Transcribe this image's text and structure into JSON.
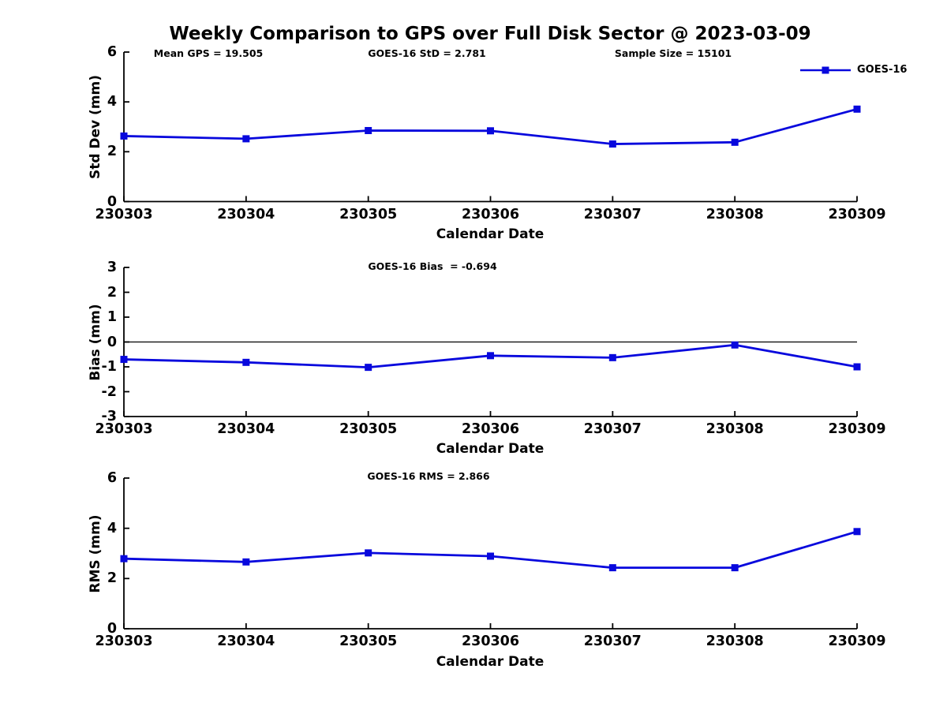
{
  "figure": {
    "title": "Weekly Comparison to GPS over Full Disk Sector @ 2023-03-09"
  },
  "legend": {
    "label": "GOES-16",
    "position": "top-right"
  },
  "colors": {
    "line": "#0808dd",
    "axis": "#000000",
    "text": "#000000",
    "background": "#ffffff"
  },
  "chart_data": [
    {
      "type": "line",
      "panel": "std-dev",
      "annotations": [
        "Mean GPS = 19.505",
        "GOES-16 StD = 2.781",
        "Sample Size = 15101"
      ],
      "categories": [
        "230303",
        "230304",
        "230305",
        "230306",
        "230307",
        "230308",
        "230309"
      ],
      "series": [
        {
          "name": "GOES-16",
          "marker": "square",
          "values": [
            2.63,
            2.52,
            2.85,
            2.84,
            2.31,
            2.38,
            3.71
          ]
        }
      ],
      "xlabel": "Calendar Date",
      "ylabel": "Std Dev (mm)",
      "ylim": [
        0,
        6
      ],
      "yticks": [
        0,
        2,
        4,
        6
      ],
      "grid": false,
      "zero_line": false
    },
    {
      "type": "line",
      "panel": "bias",
      "annotation": "GOES-16 Bias  = -0.694",
      "categories": [
        "230303",
        "230304",
        "230305",
        "230306",
        "230307",
        "230308",
        "230309"
      ],
      "series": [
        {
          "name": "GOES-16",
          "marker": "square",
          "values": [
            -0.7,
            -0.82,
            -1.02,
            -0.55,
            -0.63,
            -0.12,
            -1.0
          ]
        }
      ],
      "xlabel": "Calendar Date",
      "ylabel": "Bias (mm)",
      "ylim": [
        -3,
        3
      ],
      "yticks": [
        -3,
        -2,
        -1,
        0,
        1,
        2,
        3
      ],
      "grid": false,
      "zero_line": true
    },
    {
      "type": "line",
      "panel": "rms",
      "annotation": "GOES-16 RMS = 2.866",
      "categories": [
        "230303",
        "230304",
        "230305",
        "230306",
        "230307",
        "230308",
        "230309"
      ],
      "series": [
        {
          "name": "GOES-16",
          "marker": "square",
          "values": [
            2.79,
            2.66,
            3.02,
            2.89,
            2.43,
            2.43,
            3.87
          ]
        }
      ],
      "xlabel": "Calendar Date",
      "ylabel": "RMS (mm)",
      "ylim": [
        0,
        6
      ],
      "yticks": [
        0,
        2,
        4,
        6
      ],
      "grid": false,
      "zero_line": false
    }
  ]
}
